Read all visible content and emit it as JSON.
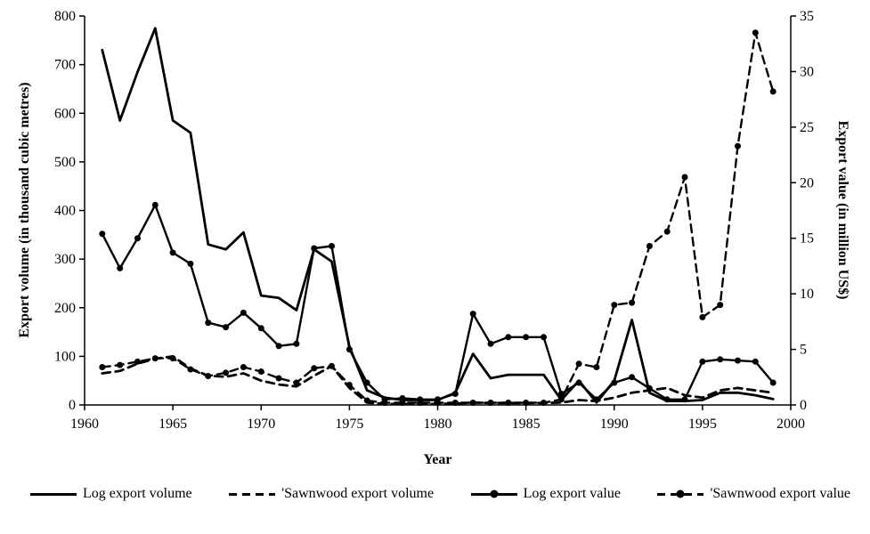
{
  "chart_data": {
    "type": "line",
    "xlabel": "Year",
    "ylabel_left": "Export volume (in thousand cubic metres)",
    "ylabel_right": "Export value (in million US$)",
    "x_range": [
      1960,
      2000
    ],
    "x_tick_step": 5,
    "y_left_range": [
      0,
      800
    ],
    "y_left_tick_step": 100,
    "y_right_range": [
      0,
      35
    ],
    "y_right_tick_step": 5,
    "grid": false,
    "legend_position": "bottom",
    "years": [
      1961,
      1962,
      1963,
      1964,
      1965,
      1966,
      1967,
      1968,
      1969,
      1970,
      1971,
      1972,
      1973,
      1974,
      1975,
      1976,
      1977,
      1978,
      1979,
      1980,
      1981,
      1982,
      1983,
      1984,
      1985,
      1986,
      1987,
      1988,
      1989,
      1990,
      1991,
      1992,
      1993,
      1994,
      1995,
      1996,
      1997,
      1998,
      1999
    ],
    "series": [
      {
        "name": "Log export volume",
        "axis": "left",
        "style": "solid",
        "marker": false,
        "values": [
          730,
          585,
          685,
          775,
          585,
          560,
          330,
          320,
          355,
          225,
          220,
          195,
          320,
          295,
          120,
          30,
          15,
          10,
          10,
          10,
          25,
          105,
          55,
          62,
          62,
          62,
          10,
          50,
          5,
          50,
          175,
          25,
          8,
          8,
          10,
          25,
          25,
          20,
          12
        ]
      },
      {
        "name": "'Sawnwood export volume",
        "axis": "left",
        "style": "dashed",
        "marker": false,
        "values": [
          65,
          70,
          85,
          95,
          100,
          75,
          60,
          58,
          65,
          50,
          42,
          38,
          60,
          80,
          35,
          5,
          2,
          2,
          2,
          2,
          3,
          5,
          4,
          4,
          4,
          4,
          5,
          10,
          8,
          15,
          25,
          30,
          35,
          20,
          15,
          30,
          35,
          30,
          25
        ]
      },
      {
        "name": "Log export value",
        "axis": "right",
        "style": "solid",
        "marker": true,
        "values": [
          15.4,
          12.3,
          15.0,
          18.0,
          13.7,
          12.7,
          7.4,
          7.0,
          8.3,
          6.9,
          5.3,
          5.5,
          14.1,
          14.3,
          5.0,
          2.0,
          0.5,
          0.6,
          0.5,
          0.5,
          1.0,
          8.2,
          5.5,
          6.1,
          6.1,
          6.1,
          1.0,
          2.0,
          0.5,
          2.0,
          2.5,
          1.5,
          0.5,
          0.5,
          3.9,
          4.1,
          4.0,
          3.9,
          2.0
        ]
      },
      {
        "name": "'Sawnwood export value",
        "axis": "right",
        "style": "dashed",
        "marker": true,
        "values": [
          3.4,
          3.6,
          3.9,
          4.2,
          4.2,
          3.2,
          2.6,
          2.9,
          3.4,
          3.0,
          2.4,
          2.0,
          3.3,
          3.5,
          1.8,
          0.4,
          0.2,
          0.2,
          0.2,
          0.2,
          0.2,
          0.2,
          0.2,
          0.2,
          0.2,
          0.2,
          0.5,
          3.7,
          3.4,
          9.0,
          9.2,
          14.3,
          15.6,
          20.5,
          7.9,
          9.0,
          23.3,
          33.5,
          28.2
        ]
      }
    ],
    "line_color": "#000000",
    "background_color": "#ffffff"
  }
}
